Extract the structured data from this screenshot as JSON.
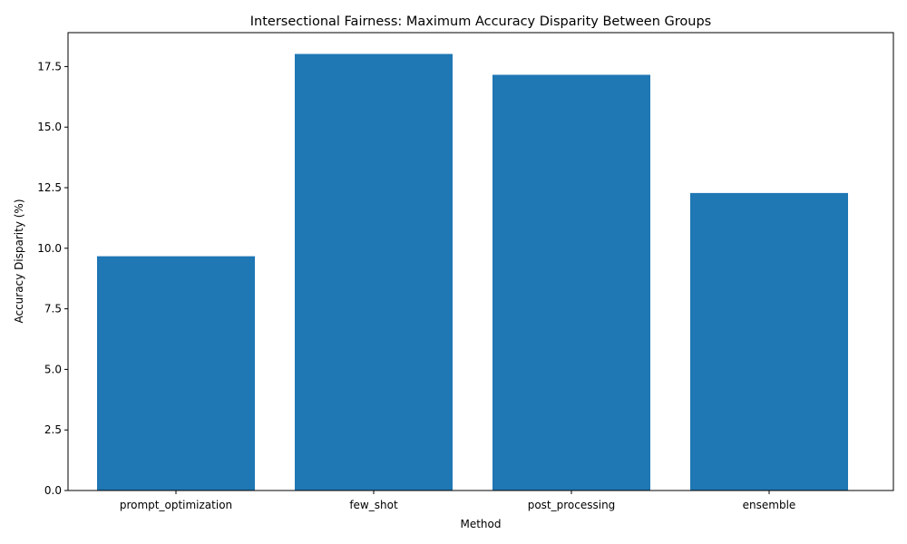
{
  "chart_data": {
    "type": "bar",
    "title": "Intersectional Fairness: Maximum Accuracy Disparity Between Groups",
    "xlabel": "Method",
    "ylabel": "Accuracy Disparity (%)",
    "categories": [
      "prompt_optimization",
      "few_shot",
      "post_processing",
      "ensemble"
    ],
    "values": [
      9.67,
      18.02,
      17.16,
      12.28
    ],
    "ylim": [
      0,
      18.9
    ],
    "yticks": [
      "0.0",
      "2.5",
      "5.0",
      "7.5",
      "10.0",
      "12.5",
      "15.0",
      "17.5"
    ],
    "bar_color": "#1f77b4",
    "grid": false,
    "legend": "none"
  }
}
